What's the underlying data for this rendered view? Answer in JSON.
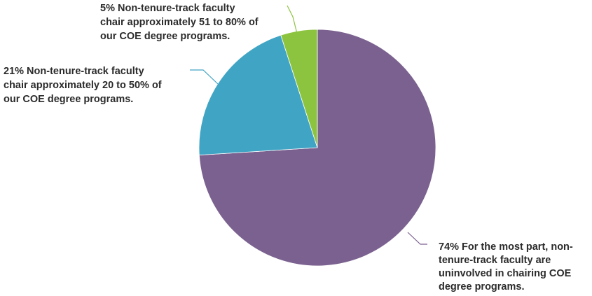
{
  "chart_data": {
    "type": "pie",
    "title": "",
    "slices": [
      {
        "value": 74,
        "label_lines": [
          "74% For the most part, non-",
          "tenure-track faculty are",
          "uninvolved in chairing COE",
          "degree programs."
        ],
        "color": "#7b618f"
      },
      {
        "value": 21,
        "label_lines": [
          "21% Non-tenure-track faculty",
          "chair approximately 20 to 50% of",
          "our COE degree programs."
        ],
        "color": "#40a4c4"
      },
      {
        "value": 5,
        "label_lines": [
          "5% Non-tenure-track faculty",
          "chair approximately 51 to 80% of",
          "our COE degree programs."
        ],
        "color": "#8dc43f"
      }
    ],
    "legend": "none",
    "start_angle": "12 o'clock, clockwise"
  }
}
